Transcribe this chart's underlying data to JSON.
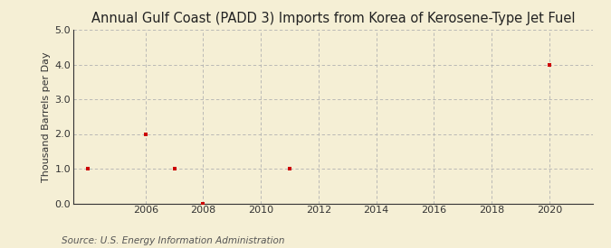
{
  "title": "Annual Gulf Coast (PADD 3) Imports from Korea of Kerosene-Type Jet Fuel",
  "ylabel": "Thousand Barrels per Day",
  "source": "Source: U.S. Energy Information Administration",
  "data_x": [
    2004,
    2006,
    2007,
    2008,
    2011,
    2020
  ],
  "data_y": [
    1.0,
    2.0,
    1.0,
    0.0,
    1.0,
    4.0
  ],
  "xlim": [
    2003.5,
    2021.5
  ],
  "ylim": [
    0.0,
    5.0
  ],
  "yticks": [
    0.0,
    1.0,
    2.0,
    3.0,
    4.0,
    5.0
  ],
  "xticks": [
    2006,
    2008,
    2010,
    2012,
    2014,
    2016,
    2018,
    2020
  ],
  "background_color": "#f5efd5",
  "plot_bg_color": "#f5efd5",
  "marker_color": "#cc0000",
  "grid_color": "#b0b0b0",
  "title_fontsize": 10.5,
  "label_fontsize": 8,
  "tick_fontsize": 8,
  "source_fontsize": 7.5
}
